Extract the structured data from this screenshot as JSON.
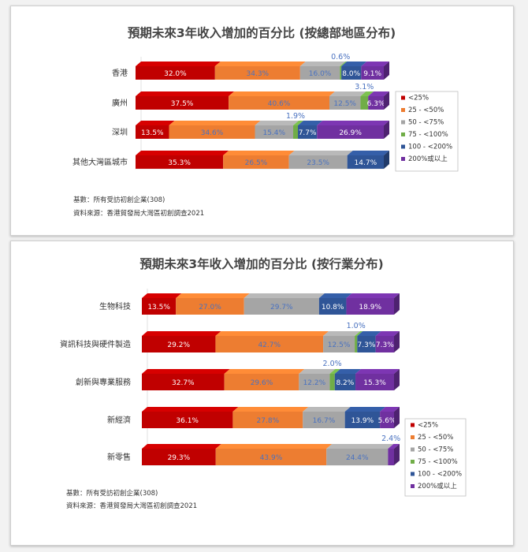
{
  "colors": {
    "<25%": "#c00000",
    "25 - <50%": "#ed7d31",
    "50 - <75%": "#a5a5a5",
    "75 - <100%": "#70ad47",
    "100 - <200%": "#2f5597",
    "200%或以上": "#7030a0"
  },
  "chart_data": [
    {
      "type": "bar",
      "orientation": "horizontal",
      "stacked": "percent",
      "title": "預期未來3年收入增加的百分比 (按總部地區分布)",
      "categories": [
        "香港",
        "廣州",
        "深圳",
        "其他大灣區城市"
      ],
      "series": [
        {
          "name": "<25%",
          "values": [
            32.0,
            37.5,
            13.5,
            35.3
          ]
        },
        {
          "name": "25 - <50%",
          "values": [
            34.3,
            40.6,
            34.6,
            26.5
          ]
        },
        {
          "name": "50 - <75%",
          "values": [
            16.0,
            12.5,
            15.4,
            23.5
          ]
        },
        {
          "name": "75 - <100%",
          "values": [
            0.6,
            3.1,
            1.9,
            0
          ]
        },
        {
          "name": "100 - <200%",
          "values": [
            8.0,
            0,
            7.7,
            14.7
          ]
        },
        {
          "name": "200%或以上",
          "values": [
            9.1,
            6.3,
            26.9,
            0
          ]
        }
      ],
      "legend_entries": [
        "<25%",
        "25 - <50%",
        "50 - <75%",
        "75 - <100%",
        "100 - <200%",
        "200%或以上"
      ],
      "legend_position": "right",
      "footnotes": [
        "基數：所有受訪初創企業(308)",
        "資料來源：香港貿發局大灣區初創調查2021"
      ]
    },
    {
      "type": "bar",
      "orientation": "horizontal",
      "stacked": "percent",
      "title": "預期未來3年收入增加的百分比 (按行業分布)",
      "categories": [
        "生物科技",
        "資訊科技與硬件製造",
        "創新與專業服務",
        "新經濟",
        "新零售"
      ],
      "series": [
        {
          "name": "<25%",
          "values": [
            13.5,
            29.2,
            32.7,
            36.1,
            29.3
          ]
        },
        {
          "name": "25 - <50%",
          "values": [
            27.0,
            42.7,
            29.6,
            27.8,
            43.9
          ]
        },
        {
          "name": "50 - <75%",
          "values": [
            29.7,
            12.5,
            12.2,
            16.7,
            24.4
          ]
        },
        {
          "name": "75 - <100%",
          "values": [
            0,
            1.0,
            2.0,
            0,
            0
          ]
        },
        {
          "name": "100 - <200%",
          "values": [
            10.8,
            7.3,
            8.2,
            13.9,
            0
          ]
        },
        {
          "name": "200%或以上",
          "values": [
            18.9,
            7.3,
            15.3,
            5.6,
            2.4
          ]
        }
      ],
      "legend_entries": [
        "<25%",
        "25 - <50%",
        "50 - <75%",
        "75 - <100%",
        "100 - <200%",
        "200%或以上"
      ],
      "legend_position": "right",
      "footnotes": [
        "基數：所有受訪初創企業(308)",
        "資料來源：香港貿發局大灣區初創調查2021"
      ]
    }
  ]
}
